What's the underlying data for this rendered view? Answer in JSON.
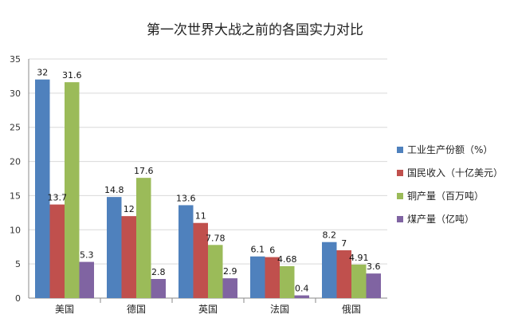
{
  "chart_data": {
    "type": "bar",
    "title": "第一次世界大战之前的各国实力对比",
    "categories": [
      "美国",
      "德国",
      "英国",
      "法国",
      "俄国"
    ],
    "ylim": [
      0,
      35
    ],
    "yticks": [
      0,
      5,
      10,
      15,
      20,
      25,
      30,
      35
    ],
    "grid": true,
    "legend_position": "right",
    "series": [
      {
        "name": "工业生产份额（%）",
        "color": "#4f81bd",
        "values": [
          32,
          14.8,
          13.6,
          6.1,
          8.2
        ],
        "labels": [
          "32",
          "14.8",
          "13.6",
          "6.1",
          "8.2"
        ]
      },
      {
        "name": "国民收入（十亿美元）",
        "color": "#c0504d",
        "values": [
          13.7,
          12,
          11,
          6,
          7
        ],
        "labels": [
          "13.7",
          "12",
          "11",
          "6",
          "7"
        ]
      },
      {
        "name": "铜产量（百万吨）",
        "color": "#9bbb59",
        "values": [
          31.6,
          17.6,
          7.78,
          4.68,
          4.91
        ],
        "labels": [
          "31.6",
          "17.6",
          "7.78",
          "4.68",
          "4.91"
        ]
      },
      {
        "name": "煤产量（亿吨）",
        "color": "#8064a2",
        "values": [
          5.3,
          2.8,
          2.9,
          0.4,
          3.6
        ],
        "labels": [
          "5.3",
          "2.8",
          "2.9",
          "0.4",
          "3.6"
        ]
      }
    ]
  }
}
